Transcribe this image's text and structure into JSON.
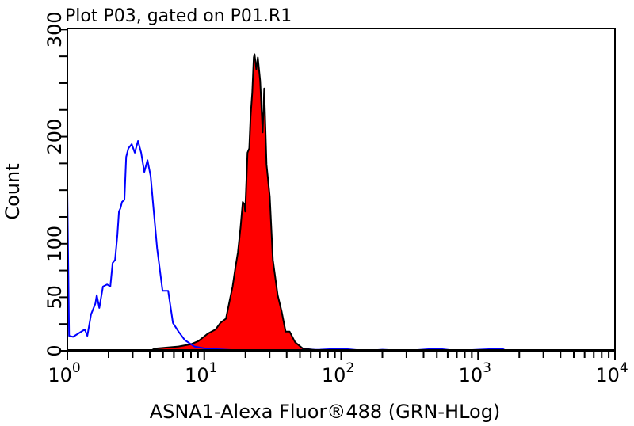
{
  "chart_data": {
    "type": "area",
    "title": "Plot P03, gated on P01.R1",
    "xlabel": "ASNA1-Alexa Fluor®488 (GRN-HLog)",
    "ylabel": "Count",
    "xscale": "log",
    "xlim": [
      1,
      10000
    ],
    "ylim": [
      0,
      301
    ],
    "grid": false,
    "x_tick_labels": [
      {
        "base": "10",
        "exp": "0",
        "value": 1
      },
      {
        "base": "10",
        "exp": "1",
        "value": 10
      },
      {
        "base": "10",
        "exp": "2",
        "value": 100
      },
      {
        "base": "10",
        "exp": "3",
        "value": 1000
      },
      {
        "base": "10",
        "exp": "4",
        "value": 10000
      }
    ],
    "y_tick_labels": [
      {
        "label": "0",
        "value": 0
      },
      {
        "label": "50",
        "value": 50
      },
      {
        "label": "100",
        "value": 100
      },
      {
        "label": "200",
        "value": 200
      },
      {
        "label": "300",
        "value": 300
      }
    ],
    "series": [
      {
        "style": "line",
        "color": "#0000ff",
        "points": [
          [
            1.0,
            0
          ],
          [
            1.0,
            148
          ],
          [
            1.03,
            14
          ],
          [
            1.1,
            13
          ],
          [
            1.34,
            20
          ],
          [
            1.4,
            14
          ],
          [
            1.49,
            34
          ],
          [
            1.6,
            44
          ],
          [
            1.64,
            52
          ],
          [
            1.71,
            40
          ],
          [
            1.82,
            60
          ],
          [
            1.95,
            62
          ],
          [
            2.06,
            60
          ],
          [
            2.14,
            82
          ],
          [
            2.23,
            85
          ],
          [
            2.32,
            108
          ],
          [
            2.38,
            130
          ],
          [
            2.44,
            133
          ],
          [
            2.51,
            139
          ],
          [
            2.61,
            141
          ],
          [
            2.69,
            181
          ],
          [
            2.79,
            189
          ],
          [
            2.95,
            193
          ],
          [
            3.11,
            185
          ],
          [
            3.28,
            196
          ],
          [
            3.46,
            185
          ],
          [
            3.65,
            167
          ],
          [
            3.85,
            178
          ],
          [
            4.06,
            163
          ],
          [
            4.23,
            137
          ],
          [
            4.52,
            96
          ],
          [
            4.96,
            56
          ],
          [
            5.45,
            56
          ],
          [
            5.9,
            26
          ],
          [
            6.48,
            18
          ],
          [
            7.21,
            10
          ],
          [
            8.47,
            4
          ],
          [
            10.3,
            2
          ],
          [
            20,
            0
          ],
          [
            70,
            1
          ],
          [
            100,
            2
          ],
          [
            150,
            0
          ],
          [
            200,
            1
          ],
          [
            300,
            0
          ],
          [
            500,
            2
          ],
          [
            700,
            0
          ],
          [
            1000,
            1
          ],
          [
            1500,
            2
          ],
          [
            1600,
            0
          ],
          [
            10000,
            0
          ]
        ]
      },
      {
        "style": "filled",
        "color": "#ff0000",
        "outline": "#000000",
        "points": [
          [
            4.06,
            0
          ],
          [
            4.34,
            2
          ],
          [
            6.48,
            4
          ],
          [
            7.92,
            6
          ],
          [
            9.05,
            9
          ],
          [
            10.6,
            16
          ],
          [
            12.1,
            20
          ],
          [
            13.1,
            26
          ],
          [
            14.4,
            30
          ],
          [
            15.4,
            48
          ],
          [
            16.1,
            60
          ],
          [
            16.9,
            78
          ],
          [
            17.6,
            92
          ],
          [
            18.4,
            115
          ],
          [
            19.1,
            139
          ],
          [
            19.6,
            137
          ],
          [
            19.9,
            130
          ],
          [
            20.7,
            185
          ],
          [
            21.3,
            189
          ],
          [
            21.8,
            219
          ],
          [
            22.4,
            241
          ],
          [
            23.0,
            274
          ],
          [
            23.3,
            277
          ],
          [
            24.0,
            263
          ],
          [
            24.6,
            274
          ],
          [
            25.6,
            252
          ],
          [
            26.7,
            204
          ],
          [
            27.4,
            245
          ],
          [
            28.5,
            174
          ],
          [
            30.1,
            144
          ],
          [
            31.7,
            85
          ],
          [
            34.4,
            52
          ],
          [
            36.7,
            37
          ],
          [
            39.3,
            18
          ],
          [
            42.0,
            18
          ],
          [
            46.1,
            8
          ],
          [
            52.7,
            2
          ],
          [
            62.7,
            1
          ],
          [
            70,
            0
          ]
        ]
      }
    ]
  }
}
